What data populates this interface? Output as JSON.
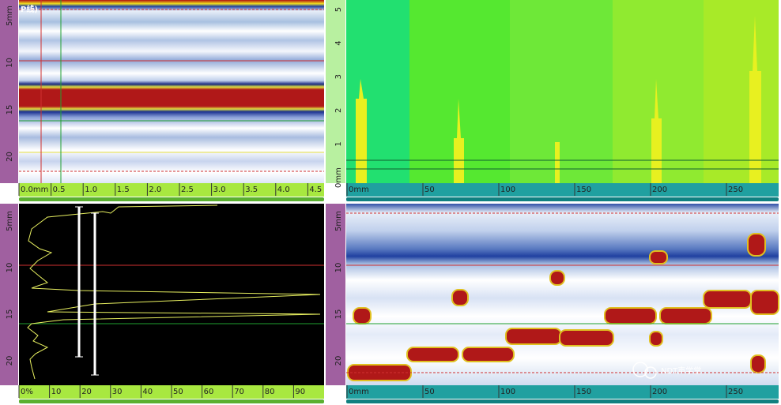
{
  "top_left": {
    "title": "P线)",
    "y_ruler": [
      "5mm",
      "10",
      "15",
      "20"
    ],
    "x_ruler": [
      "0.0mm",
      "0.5",
      "1.0",
      "1.5",
      "2.0",
      "2.5",
      "3.0",
      "3.5",
      "4.0",
      "4.5"
    ]
  },
  "top_right": {
    "y_ruler": [
      "5",
      "4",
      "3",
      "2",
      "1",
      "0mm"
    ],
    "x_ruler": [
      "0mm",
      "50",
      "100",
      "150",
      "200",
      "250"
    ]
  },
  "bottom_left": {
    "y_ruler": [
      "5mm",
      "10",
      "15",
      "20"
    ],
    "x_ruler": [
      "0%",
      "10",
      "20",
      "30",
      "40",
      "50",
      "60",
      "70",
      "80",
      "90"
    ]
  },
  "bottom_right": {
    "y_ruler": [
      "5mm",
      "10",
      "15",
      "20"
    ],
    "x_ruler": [
      "0mm",
      "50",
      "100",
      "150",
      "200",
      "250"
    ]
  },
  "watermark": "NDT声学堂"
}
